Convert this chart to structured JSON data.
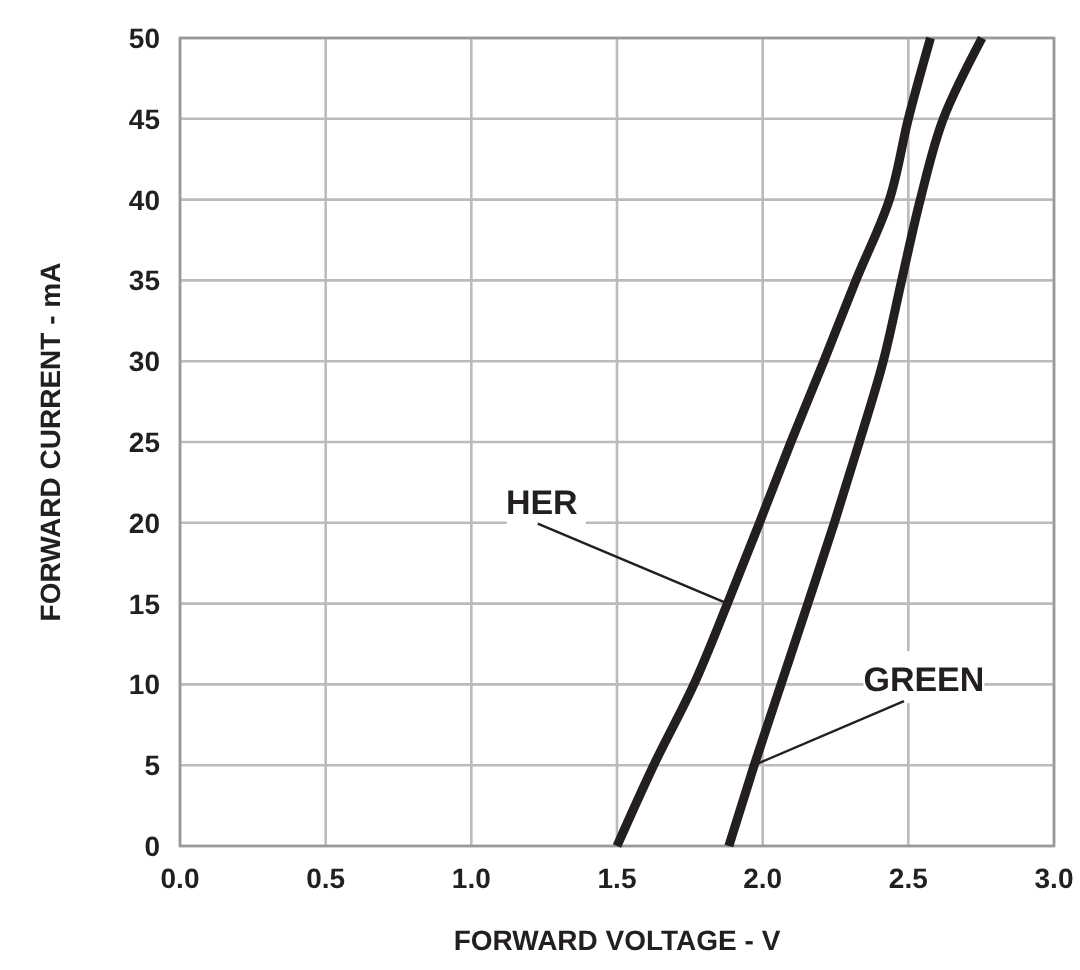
{
  "chart_data": {
    "type": "line",
    "xlabel": "FORWARD VOLTAGE - V",
    "ylabel": "FORWARD CURRENT - mA",
    "xlim": [
      0,
      3
    ],
    "xticks": [
      {
        "value": 0,
        "label": "0.0"
      },
      {
        "value": 0.5,
        "label": "0.5"
      },
      {
        "value": 1,
        "label": "1.0"
      },
      {
        "value": 1.5,
        "label": "1.5"
      },
      {
        "value": 2,
        "label": "2.0"
      },
      {
        "value": 2.5,
        "label": "2.5"
      },
      {
        "value": 3,
        "label": "3.0"
      }
    ],
    "ylim": [
      0,
      50
    ],
    "yticks": [
      0,
      5,
      10,
      15,
      20,
      25,
      30,
      35,
      40,
      45,
      50
    ],
    "grid": true,
    "line_style": "solid",
    "marker": "none",
    "series": [
      {
        "color": "#231f20",
        "x": [
          1.5,
          1.626,
          1.764,
          1.879,
          1.989,
          2.097,
          2.21,
          2.32,
          2.435,
          2.5,
          2.576
        ],
        "values": [
          0,
          5,
          10,
          15,
          20,
          25,
          30,
          35,
          40,
          45,
          50
        ]
      },
      {
        "color": "#231f20",
        "x": [
          1.884,
          1.971,
          2.063,
          2.155,
          2.246,
          2.332,
          2.414,
          2.477,
          2.541,
          2.62,
          2.753
        ],
        "values": [
          0,
          5,
          10,
          15,
          20,
          25,
          30,
          35,
          40,
          45,
          50
        ]
      }
    ],
    "annotations": [
      {
        "text": "HER",
        "x": 1.88,
        "y": 15
      },
      {
        "text": "GREEN",
        "x": 1.97,
        "y": 5
      }
    ]
  }
}
